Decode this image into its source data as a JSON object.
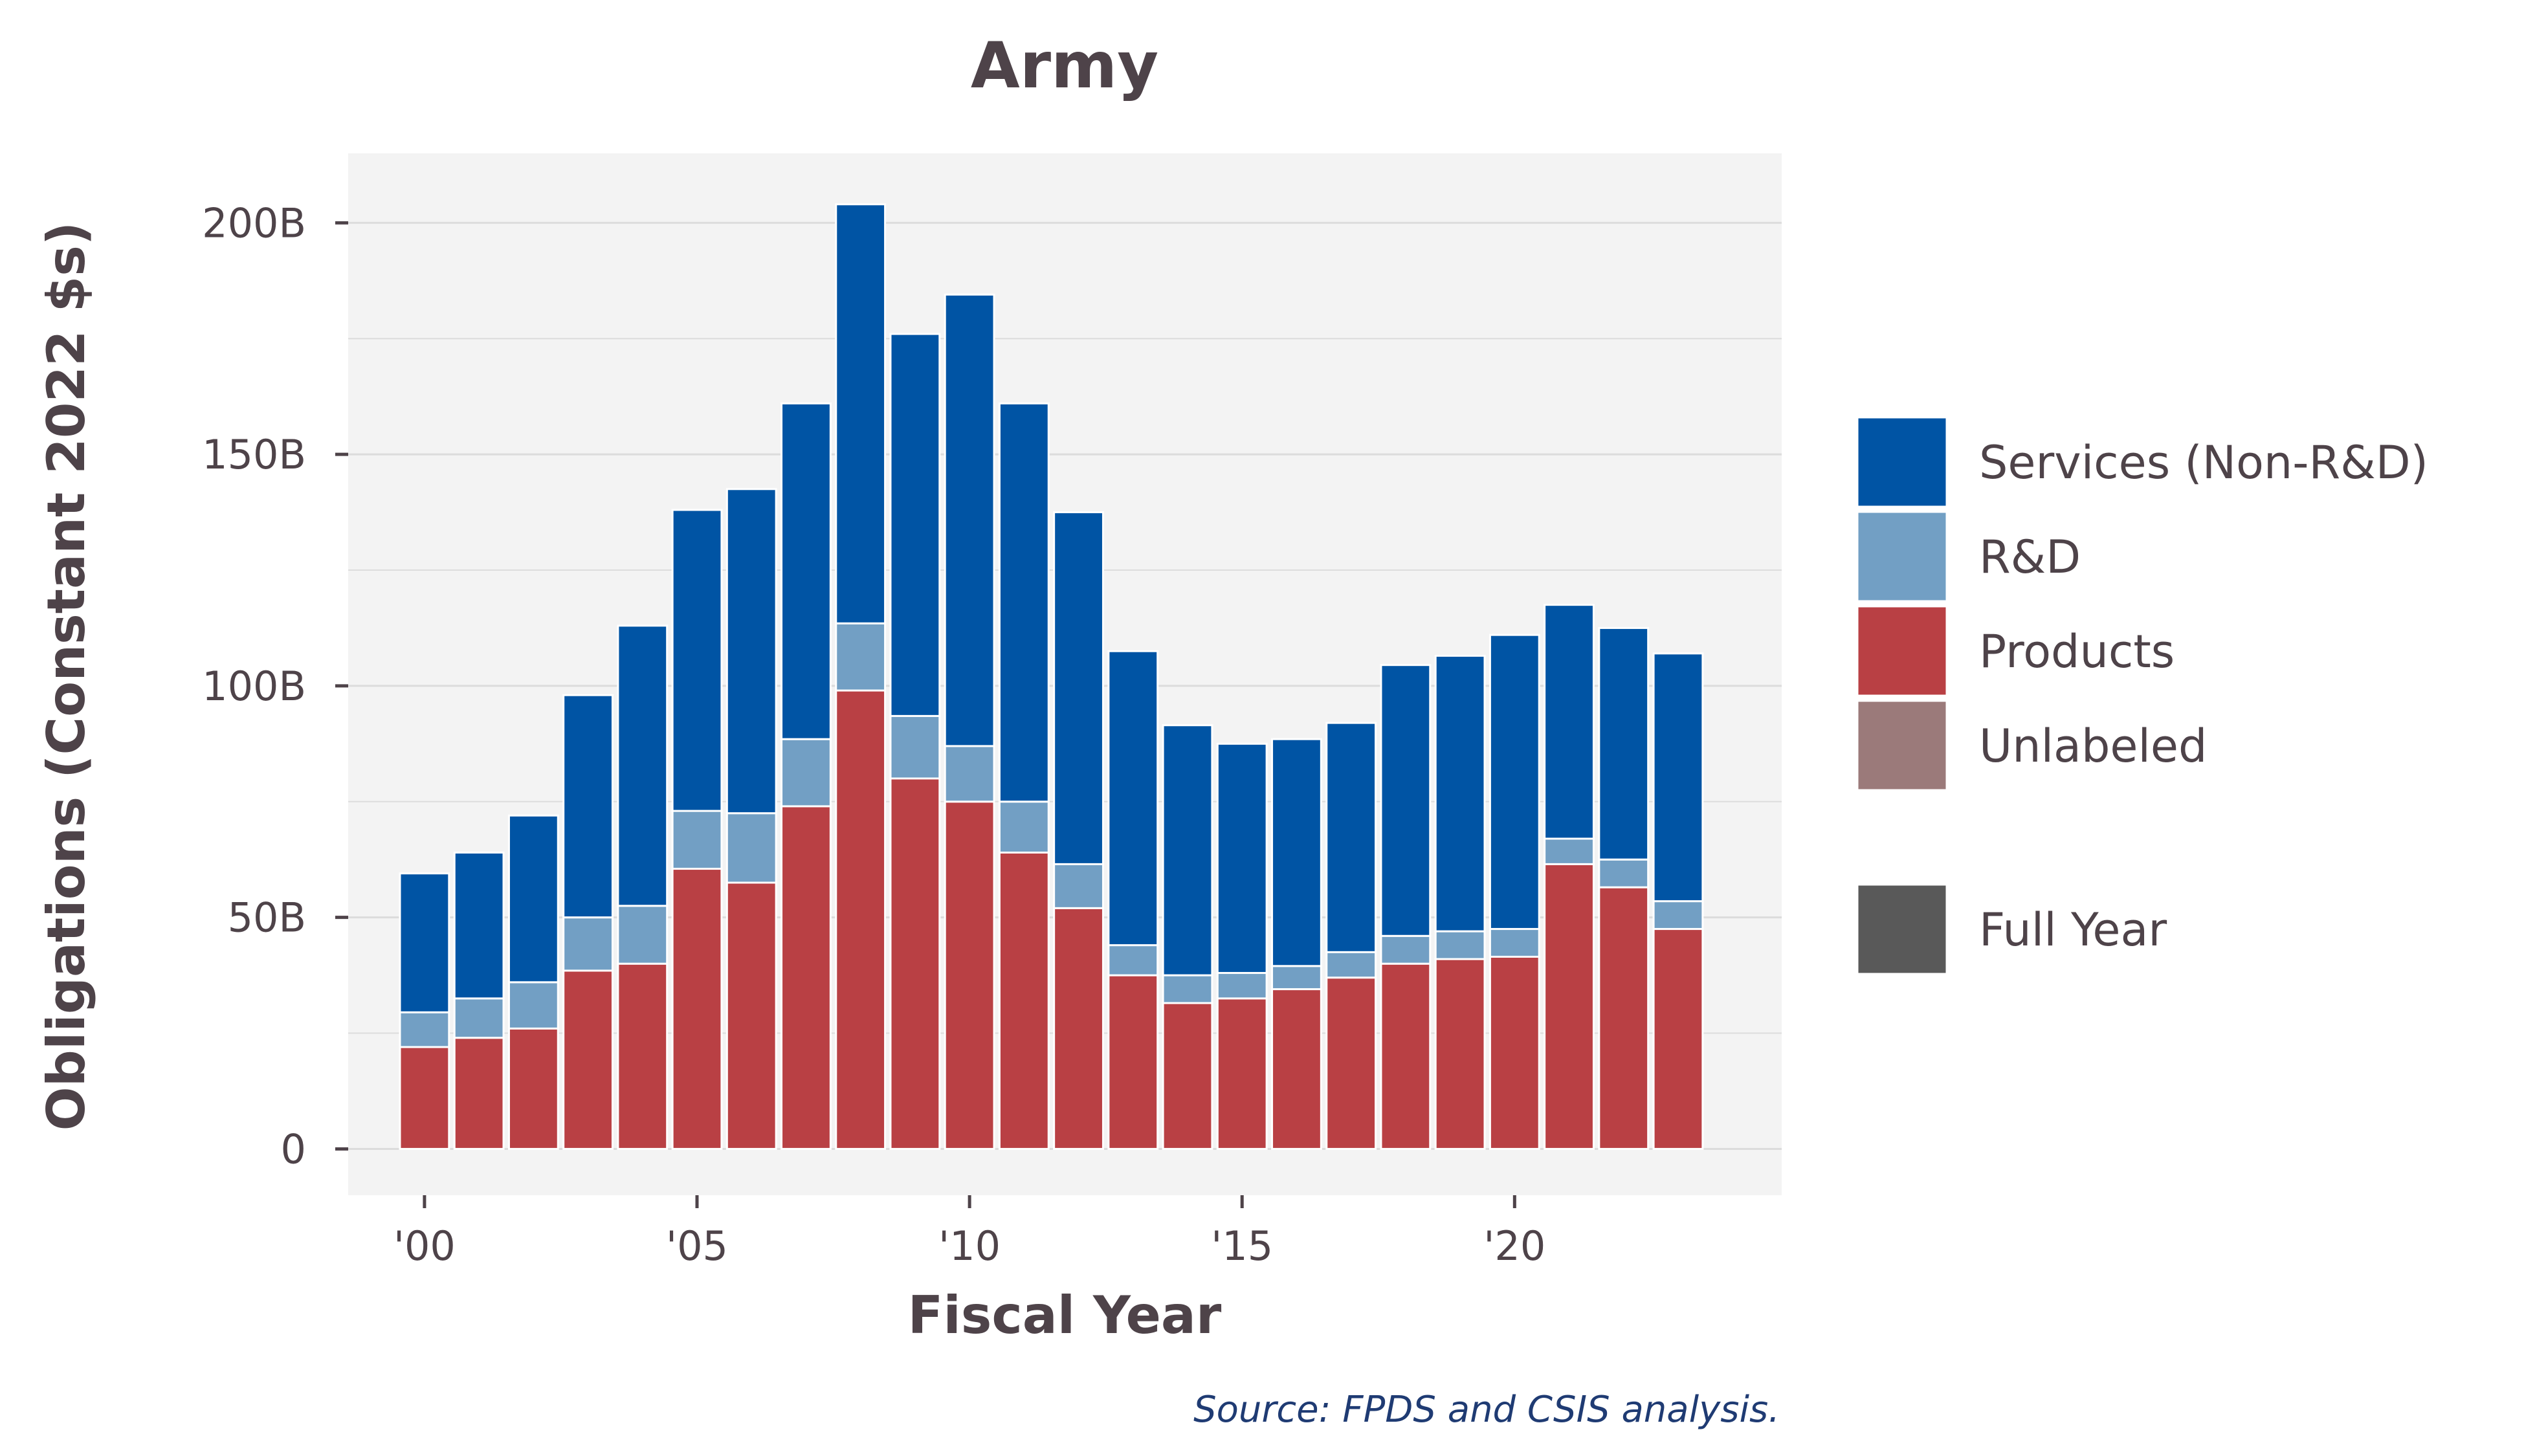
{
  "chart_data": {
    "type": "bar",
    "stacked": true,
    "title": "Army",
    "xlabel": "Fiscal Year",
    "ylabel": "Obligations (Constant 2022 $s)",
    "source": "Source: FPDS and CSIS analysis.",
    "x": [
      2000,
      2001,
      2002,
      2003,
      2004,
      2005,
      2006,
      2007,
      2008,
      2009,
      2010,
      2011,
      2012,
      2013,
      2014,
      2015,
      2016,
      2017,
      2018,
      2019,
      2020,
      2021,
      2022,
      2023
    ],
    "x_ticks": [
      {
        "value": 2000,
        "label": "'00"
      },
      {
        "value": 2005,
        "label": "'05"
      },
      {
        "value": 2010,
        "label": "'10"
      },
      {
        "value": 2015,
        "label": "'15"
      },
      {
        "value": 2020,
        "label": "'20"
      }
    ],
    "y_ticks": [
      {
        "value": 0,
        "label": "0"
      },
      {
        "value": 50,
        "label": "50B"
      },
      {
        "value": 100,
        "label": "100B"
      },
      {
        "value": 150,
        "label": "150B"
      },
      {
        "value": 200,
        "label": "200B"
      }
    ],
    "y_units": "billions of constant 2022 dollars",
    "ylim": [
      -10,
      215
    ],
    "xlim": [
      1998.6,
      2024.9
    ],
    "grid": true,
    "legend_position": "right",
    "series": [
      {
        "name": "Products",
        "color": "#b94044",
        "values": [
          22,
          24,
          26,
          38.5,
          40,
          60.5,
          57.5,
          74,
          99,
          80,
          75,
          64,
          52,
          37.5,
          31.5,
          32.5,
          34.5,
          37,
          40,
          41,
          41.5,
          61.5,
          56.5,
          47.5
        ]
      },
      {
        "name": "R&D",
        "color": "#729fc4",
        "values": [
          7.5,
          8.5,
          10,
          11.5,
          12.5,
          12.5,
          15,
          14.5,
          14.5,
          13.5,
          12,
          11,
          9.5,
          6.5,
          6,
          5.5,
          5,
          5.5,
          6,
          6,
          6,
          5.5,
          6,
          6
        ]
      },
      {
        "name": "Services (Non-R&D)",
        "color": "#0054a4",
        "values": [
          30,
          31.5,
          36,
          48,
          60.5,
          65,
          70,
          72.5,
          90.5,
          82.5,
          97.5,
          86,
          76,
          63.5,
          54,
          49.5,
          49,
          49.5,
          58.5,
          59.5,
          63.5,
          50.5,
          50,
          53.5
        ]
      },
      {
        "name": "Unlabeled",
        "color": "#9b7a7a",
        "values": [
          0,
          0,
          0,
          0,
          0,
          0,
          0,
          0,
          0,
          0,
          0,
          0,
          0,
          0,
          0,
          0,
          0,
          0,
          0,
          0,
          0,
          0,
          0,
          0
        ]
      }
    ],
    "legend": [
      {
        "name": "Services (Non-R&D)",
        "color": "#0054a4"
      },
      {
        "name": "R&D",
        "color": "#729fc4"
      },
      {
        "name": "Products",
        "color": "#b94044"
      },
      {
        "name": "Unlabeled",
        "color": "#9b7a7a"
      }
    ],
    "legend_secondary": [
      {
        "name": "Full Year",
        "color": "#595959"
      }
    ],
    "colors": {
      "panel_background": "#f3f3f3",
      "gridline": "#dcdcdc",
      "text": "#4e4349",
      "source": "#1f3b73"
    }
  }
}
